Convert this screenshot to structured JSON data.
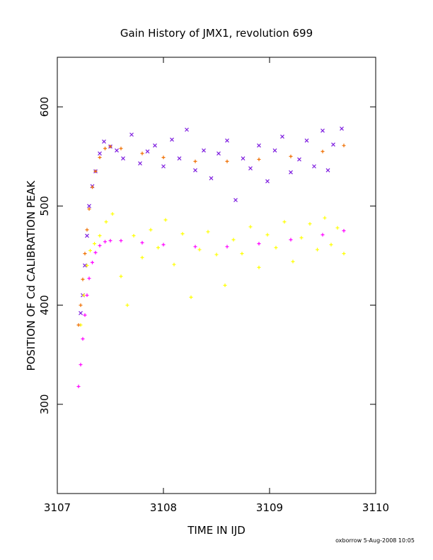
{
  "chart_data": {
    "type": "scatter",
    "title": "Gain History of JMX1, revolution 699",
    "xlabel": "TIME IN IJD",
    "ylabel": "POSITION OF Cd CALIBRATION PEAK",
    "xlim": [
      3107,
      3110
    ],
    "ylim": [
      210,
      650
    ],
    "x_ticks": [
      3107,
      3108,
      3109,
      3110
    ],
    "x_tick_labels": [
      "3107",
      "3108",
      "3109",
      "3110"
    ],
    "y_ticks": [
      300,
      400,
      500,
      600
    ],
    "y_tick_labels": [
      "300",
      "400",
      "500",
      "600"
    ],
    "grid": false,
    "legend": "none",
    "footer": "oxborrow  5-Aug-2008 10:05",
    "series": [
      {
        "marker": "x",
        "color": "#7f1fdf",
        "points": [
          [
            3107.22,
            392
          ],
          [
            3107.24,
            410
          ],
          [
            3107.26,
            440
          ],
          [
            3107.28,
            470
          ],
          [
            3107.3,
            500
          ],
          [
            3107.33,
            520
          ],
          [
            3107.36,
            535
          ],
          [
            3107.4,
            553
          ],
          [
            3107.44,
            565
          ],
          [
            3107.5,
            560
          ],
          [
            3107.56,
            556
          ],
          [
            3107.62,
            548
          ],
          [
            3107.7,
            572
          ],
          [
            3107.78,
            543
          ],
          [
            3107.85,
            555
          ],
          [
            3107.92,
            561
          ],
          [
            3108.0,
            540
          ],
          [
            3108.08,
            567
          ],
          [
            3108.15,
            548
          ],
          [
            3108.22,
            577
          ],
          [
            3108.3,
            536
          ],
          [
            3108.38,
            556
          ],
          [
            3108.45,
            528
          ],
          [
            3108.52,
            553
          ],
          [
            3108.6,
            566
          ],
          [
            3108.68,
            506
          ],
          [
            3108.75,
            548
          ],
          [
            3108.82,
            538
          ],
          [
            3108.9,
            561
          ],
          [
            3108.98,
            525
          ],
          [
            3109.05,
            556
          ],
          [
            3109.12,
            570
          ],
          [
            3109.2,
            534
          ],
          [
            3109.28,
            547
          ],
          [
            3109.35,
            566
          ],
          [
            3109.42,
            540
          ],
          [
            3109.5,
            576
          ],
          [
            3109.55,
            536
          ],
          [
            3109.6,
            562
          ],
          [
            3109.68,
            578
          ]
        ]
      },
      {
        "marker": "+",
        "color": "#ffff00",
        "points": [
          [
            3107.22,
            380
          ],
          [
            3107.25,
            410
          ],
          [
            3107.28,
            440
          ],
          [
            3107.31,
            455
          ],
          [
            3107.35,
            462
          ],
          [
            3107.4,
            470
          ],
          [
            3107.46,
            484
          ],
          [
            3107.52,
            492
          ],
          [
            3107.6,
            429
          ],
          [
            3107.66,
            400
          ],
          [
            3107.72,
            470
          ],
          [
            3107.8,
            448
          ],
          [
            3107.88,
            476
          ],
          [
            3107.95,
            458
          ],
          [
            3108.02,
            486
          ],
          [
            3108.1,
            441
          ],
          [
            3108.18,
            472
          ],
          [
            3108.26,
            408
          ],
          [
            3108.34,
            456
          ],
          [
            3108.42,
            474
          ],
          [
            3108.5,
            451
          ],
          [
            3108.58,
            420
          ],
          [
            3108.66,
            466
          ],
          [
            3108.74,
            452
          ],
          [
            3108.82,
            479
          ],
          [
            3108.9,
            438
          ],
          [
            3108.98,
            471
          ],
          [
            3109.06,
            458
          ],
          [
            3109.14,
            484
          ],
          [
            3109.22,
            444
          ],
          [
            3109.3,
            468
          ],
          [
            3109.38,
            482
          ],
          [
            3109.45,
            456
          ],
          [
            3109.52,
            488
          ],
          [
            3109.58,
            461
          ],
          [
            3109.64,
            478
          ],
          [
            3109.7,
            452
          ]
        ]
      },
      {
        "marker": "+",
        "color": "#ef6f00",
        "points": [
          [
            3107.2,
            380
          ],
          [
            3107.22,
            400
          ],
          [
            3107.24,
            426
          ],
          [
            3107.26,
            452
          ],
          [
            3107.28,
            476
          ],
          [
            3107.3,
            497
          ],
          [
            3107.33,
            519
          ],
          [
            3107.36,
            535
          ],
          [
            3107.4,
            549
          ],
          [
            3107.45,
            558
          ],
          [
            3107.5,
            560
          ],
          [
            3107.6,
            558
          ],
          [
            3107.8,
            553
          ],
          [
            3108.0,
            549
          ],
          [
            3108.3,
            545
          ],
          [
            3108.6,
            545
          ],
          [
            3108.9,
            547
          ],
          [
            3109.2,
            550
          ],
          [
            3109.5,
            555
          ],
          [
            3109.7,
            561
          ]
        ]
      },
      {
        "marker": "+",
        "color": "#ff00ff",
        "points": [
          [
            3107.2,
            318
          ],
          [
            3107.22,
            340
          ],
          [
            3107.24,
            366
          ],
          [
            3107.26,
            390
          ],
          [
            3107.28,
            410
          ],
          [
            3107.3,
            427
          ],
          [
            3107.33,
            443
          ],
          [
            3107.36,
            453
          ],
          [
            3107.4,
            460
          ],
          [
            3107.45,
            464
          ],
          [
            3107.5,
            465
          ],
          [
            3107.6,
            465
          ],
          [
            3107.8,
            463
          ],
          [
            3108.0,
            461
          ],
          [
            3108.3,
            459
          ],
          [
            3108.6,
            459
          ],
          [
            3108.9,
            462
          ],
          [
            3109.2,
            466
          ],
          [
            3109.5,
            471
          ],
          [
            3109.7,
            475
          ]
        ]
      }
    ]
  }
}
